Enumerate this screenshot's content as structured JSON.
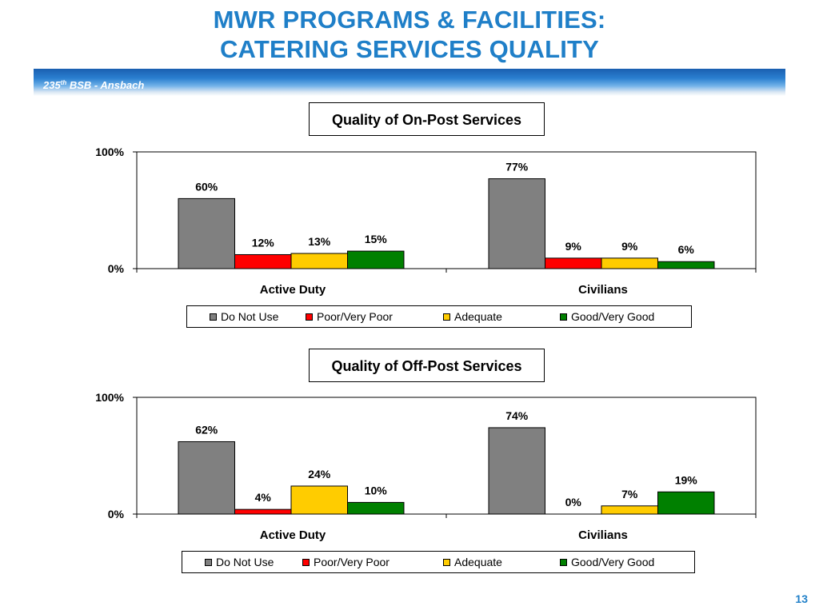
{
  "slide": {
    "title_line1": "MWR PROGRAMS & FACILITIES:",
    "title_line2": "CATERING SERVICES QUALITY",
    "banner_text": "235",
    "banner_sup": "th",
    "banner_rest": " BSB - Ansbach",
    "page_number": "13"
  },
  "colors": {
    "title": "#1f7fc8",
    "do_not_use": "#808080",
    "poor": "#ff0000",
    "adequate": "#ffcc00",
    "good": "#008000"
  },
  "chart_data": [
    {
      "type": "bar",
      "title": "Quality of On-Post Services",
      "categories": [
        "Active Duty",
        "Civilians"
      ],
      "ylim": [
        0,
        100
      ],
      "ytick_labels": [
        "100%",
        "0%"
      ],
      "value_suffix": "%",
      "legend_position": "bottom",
      "series": [
        {
          "name": "Do Not Use",
          "color": "#808080",
          "values": [
            60,
            77
          ]
        },
        {
          "name": "Poor/Very Poor",
          "color": "#ff0000",
          "values": [
            12,
            9
          ]
        },
        {
          "name": "Adequate",
          "color": "#ffcc00",
          "values": [
            13,
            9
          ]
        },
        {
          "name": "Good/Very Good",
          "color": "#008000",
          "values": [
            15,
            6
          ]
        }
      ]
    },
    {
      "type": "bar",
      "title": "Quality of Off-Post Services",
      "categories": [
        "Active Duty",
        "Civilians"
      ],
      "ylim": [
        0,
        100
      ],
      "ytick_labels": [
        "100%",
        "0%"
      ],
      "value_suffix": "%",
      "legend_position": "bottom",
      "series": [
        {
          "name": "Do Not Use",
          "color": "#808080",
          "values": [
            62,
            74
          ]
        },
        {
          "name": "Poor/Very Poor",
          "color": "#ff0000",
          "values": [
            4,
            0
          ]
        },
        {
          "name": "Adequate",
          "color": "#ffcc00",
          "values": [
            24,
            7
          ]
        },
        {
          "name": "Good/Very Good",
          "color": "#008000",
          "values": [
            10,
            19
          ]
        }
      ]
    }
  ]
}
